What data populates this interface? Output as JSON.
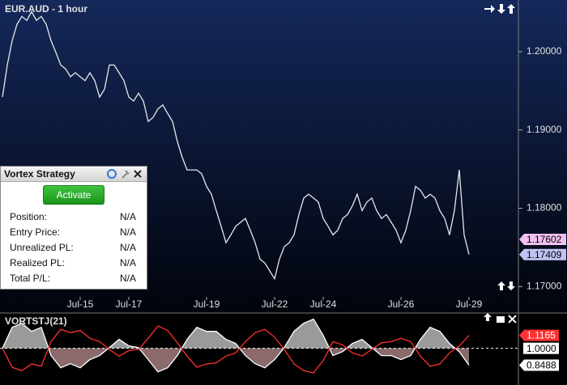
{
  "chart_data": [
    {
      "type": "line",
      "title": "EUR.AUD - 1 hour",
      "categories": [
        null,
        null,
        null,
        null,
        null,
        null,
        null,
        null,
        null,
        null,
        null,
        null,
        null,
        null,
        null,
        null,
        "Jul-15",
        null,
        null,
        null,
        null,
        null,
        null,
        null,
        null,
        null,
        "Jul-17",
        null,
        null,
        null,
        null,
        null,
        null,
        null,
        null,
        null,
        null,
        null,
        null,
        null,
        null,
        null,
        "Jul-19",
        null,
        null,
        null,
        null,
        null,
        null,
        null,
        null,
        null,
        null,
        null,
        null,
        null,
        "Jul-22",
        null,
        null,
        null,
        null,
        null,
        null,
        null,
        null,
        null,
        "Jul-24",
        null,
        null,
        null,
        null,
        null,
        null,
        null,
        null,
        null,
        null,
        null,
        null,
        null,
        null,
        null,
        "Jul-26",
        null,
        null,
        null,
        null,
        null,
        null,
        null,
        null,
        null,
        null,
        null,
        null,
        null,
        "Jul-29"
      ],
      "series": [
        {
          "color": "#e8e8e8",
          "values": [
            1.1942,
            1.1983,
            1.2014,
            1.2035,
            1.2045,
            1.204,
            1.2051,
            1.204,
            1.2045,
            1.2035,
            1.2014,
            1.1999,
            1.1983,
            1.1978,
            1.1968,
            1.1973,
            1.1968,
            1.1963,
            1.1973,
            1.1963,
            1.1942,
            1.1952,
            1.1983,
            1.1983,
            1.1973,
            1.1963,
            1.1942,
            1.1937,
            1.1947,
            1.1937,
            1.1911,
            1.1916,
            1.1927,
            1.1932,
            1.1921,
            1.1911,
            1.1885,
            1.1865,
            1.1849,
            1.1849,
            1.1849,
            1.1844,
            1.1828,
            1.1818,
            1.1797,
            1.1777,
            1.1756,
            1.1766,
            1.1777,
            1.1782,
            1.1787,
            1.1772,
            1.1756,
            1.1735,
            1.173,
            1.172,
            1.171,
            1.1735,
            1.1751,
            1.1756,
            1.1766,
            1.1792,
            1.1813,
            1.1818,
            1.1813,
            1.1808,
            1.1787,
            1.1777,
            1.1766,
            1.1772,
            1.1787,
            1.1792,
            1.1803,
            1.1818,
            1.1797,
            1.1808,
            1.1813,
            1.1797,
            1.1787,
            1.1792,
            1.1782,
            1.1772,
            1.1756,
            1.1772,
            1.1797,
            1.1828,
            1.1823,
            1.1813,
            1.1818,
            1.1813,
            1.1797,
            1.1787,
            1.1766,
            1.1797,
            1.1849,
            1.1766,
            1.1741
          ]
        }
      ],
      "ylim": [
        1.169,
        1.2066
      ],
      "yticks": [
        {
          "value": 1.17,
          "label": "1.17000"
        },
        {
          "value": 1.18,
          "label": "1.18000"
        },
        {
          "value": 1.19,
          "label": "1.19000"
        },
        {
          "value": 1.2,
          "label": "1.20000"
        }
      ],
      "price_labels": [
        1.17602,
        1.17409
      ],
      "price_label_colors": [
        "#f0c0f0",
        "#c0c4f4"
      ]
    },
    {
      "type": "line",
      "title": "VORTSTJ(21)",
      "series": [
        {
          "color": "#ffffff",
          "values": [
            1.0,
            1.188,
            1.225,
            1.152,
            1.188,
            0.935,
            0.826,
            0.862,
            0.826,
            0.899,
            0.935,
            1.007,
            1.08,
            1.022,
            1.007,
            0.899,
            0.79,
            0.826,
            0.935,
            1.08,
            1.188,
            1.152,
            1.152,
            1.08,
            1.043,
            0.935,
            0.862,
            0.826,
            0.899,
            1.007,
            1.152,
            1.225,
            1.261,
            1.116,
            0.935,
            0.971,
            1.043,
            1.08,
            1.007,
            0.935,
            0.935,
            0.899,
            0.935,
            1.08,
            1.188,
            1.152,
            1.043,
            0.971,
            0.8488
          ]
        },
        {
          "color": "#ff3030",
          "values": [
            1.0,
            0.83,
            0.8,
            0.86,
            0.84,
            1.06,
            1.17,
            1.14,
            1.16,
            1.09,
            1.06,
            0.99,
            0.93,
            0.98,
            0.99,
            1.09,
            1.2,
            1.16,
            1.05,
            0.93,
            0.83,
            0.86,
            0.87,
            0.93,
            0.96,
            1.06,
            1.14,
            1.17,
            1.1,
            0.99,
            0.86,
            0.8,
            0.78,
            0.89,
            1.06,
            1.03,
            0.96,
            0.93,
            0.99,
            1.05,
            1.06,
            1.09,
            1.06,
            0.93,
            0.84,
            0.86,
            0.96,
            1.02,
            1.1165
          ]
        }
      ],
      "ylim": [
        0.71,
        1.28
      ],
      "reference": {
        "value": 1,
        "label": "1.0000"
      },
      "last_label_colors": [
        "#ffffff",
        "#ff3030"
      ]
    }
  ],
  "strategy_panel": {
    "title": "Vortex Strategy",
    "button": "Activate",
    "rows": [
      [
        "Position:",
        "N/A"
      ],
      [
        "Entry Price:",
        "N/A"
      ],
      [
        "Unrealized PL:",
        "N/A"
      ],
      [
        "Realized PL:",
        "N/A"
      ],
      [
        "Total P/L:",
        "N/A"
      ]
    ]
  }
}
